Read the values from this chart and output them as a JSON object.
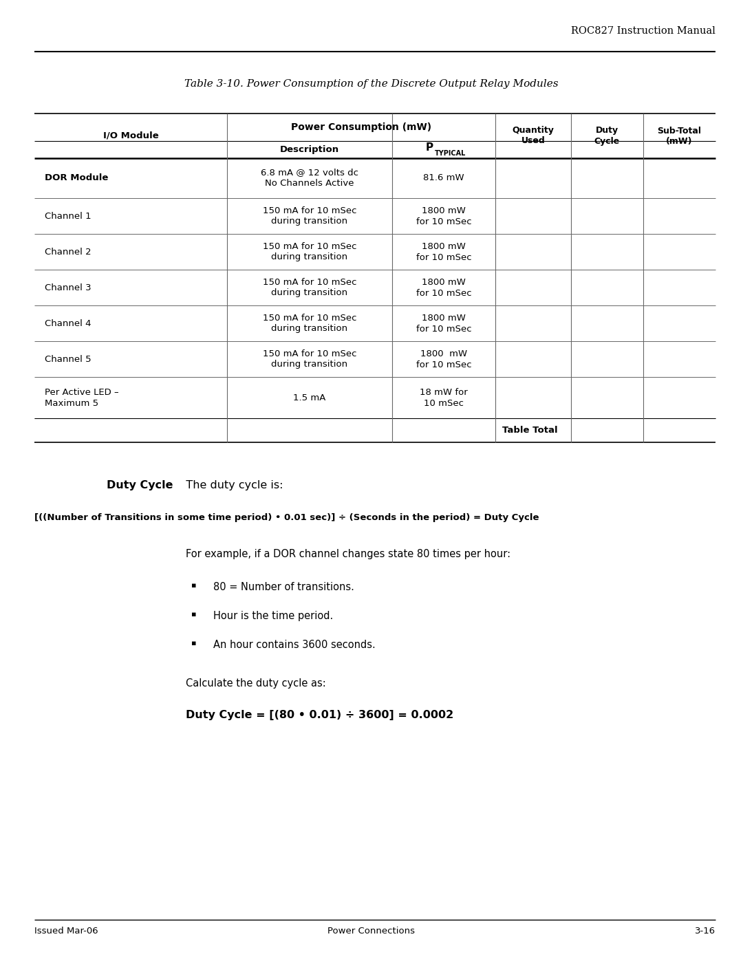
{
  "header_text": "ROC827 Instruction Manual",
  "title": "Table 3-10. Power Consumption of the Discrete Output Relay Modules",
  "table": {
    "rows": [
      {
        "col0": "DOR Module",
        "col1": "6.8 mA @ 12 volts dc\nNo Channels Active",
        "col2": "81.6 mW",
        "bold": true
      },
      {
        "col0": "Channel 1",
        "col1": "150 mA for 10 mSec\nduring transition",
        "col2": "1800 mW\nfor 10 mSec",
        "bold": false
      },
      {
        "col0": "Channel 2",
        "col1": "150 mA for 10 mSec\nduring transition",
        "col2": "1800 mW\nfor 10 mSec",
        "bold": false
      },
      {
        "col0": "Channel 3",
        "col1": "150 mA for 10 mSec\nduring transition",
        "col2": "1800 mW\nfor 10 mSec",
        "bold": false
      },
      {
        "col0": "Channel 4",
        "col1": "150 mA for 10 mSec\nduring transition",
        "col2": "1800 mW\nfor 10 mSec",
        "bold": false
      },
      {
        "col0": "Channel 5",
        "col1": "150 mA for 10 mSec\nduring transition",
        "col2": "1800  mW\nfor 10 mSec",
        "bold": false
      },
      {
        "col0": "Per Active LED –\nMaximum 5",
        "col1": "1.5 mA",
        "col2": "18 mW for\n10 mSec",
        "bold": false
      }
    ],
    "table_total_label": "Table Total"
  },
  "duty_cycle_section": {
    "label_bold": "Duty Cycle",
    "label_normal": "   The duty cycle is:",
    "formula_bold": "[((Number of Transitions in some time period) • 0.01 sec)] ÷ (Seconds in the period) = Duty Cycle",
    "example_text": "For example, if a DOR channel changes state 80 times per hour:",
    "bullets": [
      "80 = Number of transitions.",
      "Hour is the time period.",
      "An hour contains 3600 seconds."
    ],
    "calc_label": "Calculate the duty cycle as:",
    "result_bold": "Duty Cycle = [(80 • 0.01) ÷ 3600] = 0.0002"
  },
  "footer": {
    "left": "Issued Mar-06",
    "center": "Power Connections",
    "right": "3-16"
  },
  "bg_color": "#ffffff"
}
